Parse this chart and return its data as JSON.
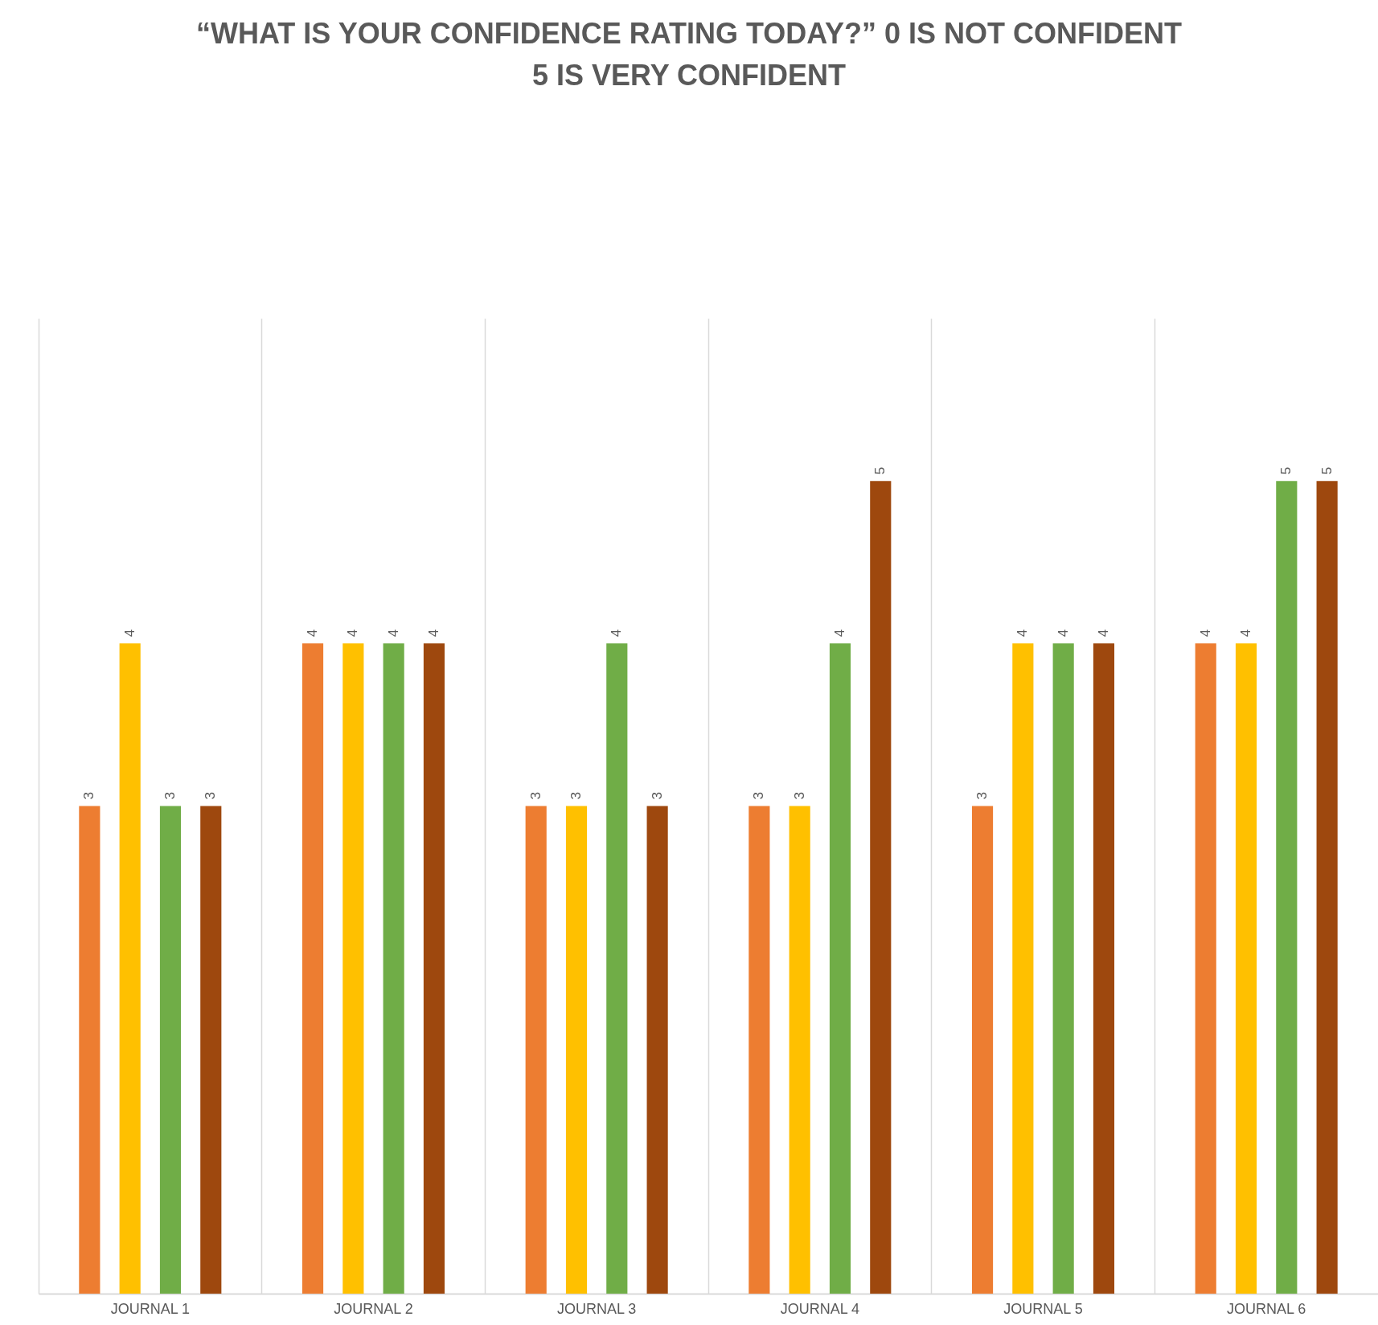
{
  "chart_data": {
    "type": "bar",
    "title": "“WHAT IS YOUR CONFIDENCE RATING TODAY?” 0 IS NOT CONFIDENT\n5 IS VERY CONFIDENT",
    "categories": [
      "JOURNAL 1",
      "JOURNAL 2",
      "JOURNAL 3",
      "JOURNAL 4",
      "JOURNAL 5",
      "JOURNAL 6"
    ],
    "series": [
      {
        "color": "#ed7d31",
        "values": [
          3,
          4,
          3,
          3,
          3,
          4
        ]
      },
      {
        "color": "#ffc000",
        "values": [
          4,
          4,
          3,
          3,
          4,
          4
        ]
      },
      {
        "color": "#70ad47",
        "values": [
          3,
          4,
          4,
          4,
          4,
          5
        ]
      },
      {
        "color": "#9e480e",
        "values": [
          3,
          4,
          3,
          5,
          4,
          5
        ]
      }
    ],
    "ylim": [
      0,
      6
    ],
    "data_labels": true,
    "grid": "x",
    "tick_labels": "x",
    "legend": false
  }
}
